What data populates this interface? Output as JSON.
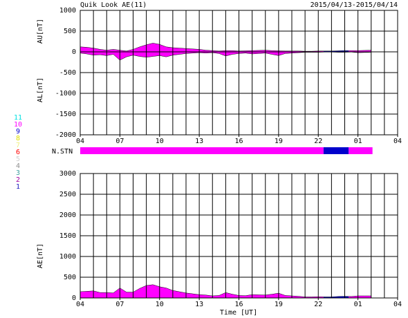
{
  "header": {
    "title": "Quik Look AE(11)",
    "date_range": "2015/04/13-2015/04/14",
    "x_label": "Time [UT]"
  },
  "station_legend": [
    {
      "label": "11",
      "color": "#00e0e0"
    },
    {
      "label": "10",
      "color": "#ff00ff"
    },
    {
      "label": "9",
      "color": "#0000cc"
    },
    {
      "label": "8",
      "color": "#e0e000"
    },
    {
      "label": "7",
      "color": "#f0f080"
    },
    {
      "label": "6",
      "color": "#ff0000"
    },
    {
      "label": "5",
      "color": "#d0d0d0"
    },
    {
      "label": "4",
      "color": "#909090"
    },
    {
      "label": "3",
      "color": "#40a0a0"
    },
    {
      "label": "2",
      "color": "#a000a0"
    },
    {
      "label": "1",
      "color": "#2020c0"
    }
  ],
  "chart_data": [
    {
      "type": "area",
      "axis_labels": [
        "AU[nT]",
        "AL[nT]"
      ],
      "xlim": [
        0,
        24
      ],
      "grid_step": 1,
      "xticks": [
        {
          "value": 0,
          "label": "04"
        },
        {
          "value": 3,
          "label": "07"
        },
        {
          "value": 6,
          "label": "10"
        },
        {
          "value": 9,
          "label": "13"
        },
        {
          "value": 12,
          "label": "16"
        },
        {
          "value": 15,
          "label": "19"
        },
        {
          "value": 18,
          "label": "22"
        },
        {
          "value": 21,
          "label": "01"
        },
        {
          "value": 24,
          "label": "04"
        }
      ],
      "ylim": [
        -2000,
        1000
      ],
      "yticks": [
        1000,
        500,
        0,
        -500,
        -1000,
        -1500,
        -2000
      ],
      "x": [
        0,
        0.5,
        1,
        1.5,
        2,
        2.5,
        3,
        3.5,
        4,
        4.5,
        5,
        5.5,
        6,
        6.5,
        7,
        7.5,
        8,
        8.5,
        9,
        9.5,
        10,
        10.5,
        11,
        11.5,
        12,
        12.5,
        13,
        13.5,
        14,
        14.5,
        15,
        15.5,
        16,
        16.5,
        17,
        17.5,
        18,
        18.5,
        19,
        19.5,
        20,
        20.5,
        21,
        21.5,
        22
      ],
      "series": [
        {
          "name": "AU",
          "values": [
            120,
            110,
            90,
            60,
            40,
            60,
            40,
            20,
            60,
            120,
            170,
            210,
            180,
            120,
            100,
            90,
            80,
            70,
            60,
            40,
            30,
            20,
            30,
            30,
            20,
            25,
            30,
            35,
            40,
            30,
            25,
            20,
            20,
            20,
            15,
            15,
            20,
            20,
            20,
            25,
            30,
            30,
            30,
            35,
            40
          ]
        },
        {
          "name": "AL",
          "values": [
            -30,
            -50,
            -80,
            -70,
            -90,
            -60,
            -200,
            -120,
            -80,
            -110,
            -130,
            -110,
            -90,
            -120,
            -80,
            -60,
            -40,
            -30,
            -20,
            -30,
            -20,
            -40,
            -100,
            -60,
            -40,
            -30,
            -50,
            -40,
            -30,
            -60,
            -90,
            -40,
            -30,
            -20,
            -10,
            -10,
            -10,
            -5,
            -5,
            -10,
            -10,
            -5,
            -20,
            -15,
            -10
          ]
        }
      ]
    },
    {
      "type": "strip",
      "label": "N.STN",
      "segments": [
        {
          "start": 0,
          "end": 18.4,
          "count": 10
        },
        {
          "start": 18.4,
          "end": 20.3,
          "count": 9
        },
        {
          "start": 20.3,
          "end": 22.1,
          "count": 10
        }
      ]
    },
    {
      "type": "area",
      "axis_labels": [
        "AE[nT]"
      ],
      "xlim": [
        0,
        24
      ],
      "grid_step": 1,
      "xticks": [
        {
          "value": 0,
          "label": "04"
        },
        {
          "value": 3,
          "label": "07"
        },
        {
          "value": 6,
          "label": "10"
        },
        {
          "value": 9,
          "label": "13"
        },
        {
          "value": 12,
          "label": "16"
        },
        {
          "value": 15,
          "label": "19"
        },
        {
          "value": 18,
          "label": "22"
        },
        {
          "value": 21,
          "label": "01"
        },
        {
          "value": 24,
          "label": "04"
        }
      ],
      "ylim": [
        0,
        3000
      ],
      "yticks": [
        3000,
        2500,
        2000,
        1500,
        1000,
        500,
        0
      ],
      "x": [
        0,
        0.5,
        1,
        1.5,
        2,
        2.5,
        3,
        3.5,
        4,
        4.5,
        5,
        5.5,
        6,
        6.5,
        7,
        7.5,
        8,
        8.5,
        9,
        9.5,
        10,
        10.5,
        11,
        11.5,
        12,
        12.5,
        13,
        13.5,
        14,
        14.5,
        15,
        15.5,
        16,
        16.5,
        17,
        17.5,
        18,
        18.5,
        19,
        19.5,
        20,
        20.5,
        21,
        21.5,
        22
      ],
      "series": [
        {
          "name": "AE",
          "values": [
            150,
            160,
            170,
            130,
            130,
            120,
            240,
            140,
            140,
            230,
            300,
            320,
            270,
            240,
            180,
            150,
            120,
            100,
            80,
            70,
            50,
            60,
            130,
            90,
            60,
            55,
            80,
            75,
            70,
            90,
            115,
            60,
            50,
            40,
            25,
            25,
            30,
            25,
            25,
            35,
            40,
            35,
            50,
            50,
            50
          ]
        }
      ]
    }
  ]
}
